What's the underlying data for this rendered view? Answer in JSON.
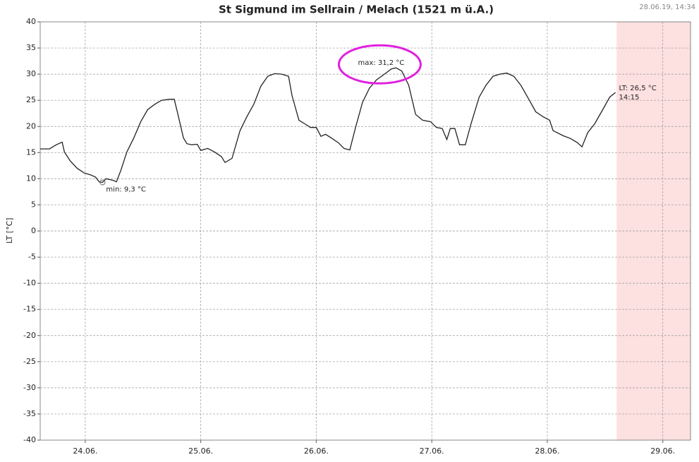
{
  "chart_data": {
    "type": "line",
    "title": "St Sigmund im Sellrain / Melach (1521 m ü.A.)",
    "timestamp": "28.06.19, 14:34",
    "y_label": "LT [°C]",
    "xlim": [
      23.61,
      29.24
    ],
    "xticks": [
      {
        "value": 24,
        "label": "24.06."
      },
      {
        "value": 25,
        "label": "25.06."
      },
      {
        "value": 26,
        "label": "26.06."
      },
      {
        "value": 27,
        "label": "27.06."
      },
      {
        "value": 28,
        "label": "28.06."
      },
      {
        "value": 29,
        "label": "29.06."
      }
    ],
    "ylim": [
      -40,
      40
    ],
    "yticks": [
      40,
      35,
      30,
      25,
      20,
      15,
      10,
      5,
      0,
      -5,
      -10,
      -15,
      -20,
      -25,
      -30,
      -35,
      -40
    ],
    "grid": true,
    "highlight_xlim": [
      28.6,
      29.24
    ],
    "highlight_color": "#fde0e0",
    "min_label": "min: 9,3 °C",
    "max_label": "max: 31,2 °C",
    "last_label": [
      "LT: 26,5 °C",
      "14:15"
    ],
    "series": [
      {
        "color": "#222222",
        "x": [
          23.61,
          23.69,
          23.75,
          23.8,
          23.82,
          23.87,
          23.93,
          23.99,
          24.05,
          24.09,
          24.12,
          24.15,
          24.18,
          24.24,
          24.27,
          24.31,
          24.36,
          24.42,
          24.48,
          24.54,
          24.6,
          24.66,
          24.73,
          24.77,
          24.8,
          24.85,
          24.88,
          24.92,
          24.97,
          25.0,
          25.06,
          25.12,
          25.18,
          25.21,
          25.27,
          25.34,
          25.4,
          25.46,
          25.52,
          25.58,
          25.64,
          25.7,
          25.76,
          25.79,
          25.85,
          25.9,
          25.95,
          26.0,
          26.04,
          26.08,
          26.13,
          26.19,
          26.24,
          26.29,
          26.34,
          26.4,
          26.46,
          26.52,
          26.59,
          26.65,
          26.69,
          26.74,
          26.8,
          26.86,
          26.92,
          26.99,
          27.04,
          27.09,
          27.13,
          27.16,
          27.2,
          27.24,
          27.29,
          27.34,
          27.41,
          27.47,
          27.53,
          27.59,
          27.65,
          27.71,
          27.77,
          27.84,
          27.9,
          27.96,
          28.02,
          28.05,
          28.14,
          28.2,
          28.26,
          28.3,
          28.35,
          28.41,
          28.48,
          28.54,
          28.59
        ],
        "values": [
          15.7,
          15.7,
          16.5,
          17.0,
          15.1,
          13.4,
          12.0,
          11.1,
          10.7,
          10.3,
          9.4,
          9.3,
          10.0,
          9.7,
          9.4,
          11.7,
          15.1,
          17.8,
          20.9,
          23.2,
          24.2,
          25.0,
          25.2,
          25.2,
          22.5,
          17.8,
          16.7,
          16.5,
          16.6,
          15.4,
          15.8,
          15.1,
          14.2,
          13.1,
          13.9,
          19.2,
          21.9,
          24.3,
          27.7,
          29.6,
          30.1,
          30.0,
          29.6,
          25.9,
          21.2,
          20.5,
          19.8,
          19.8,
          18.1,
          18.5,
          17.8,
          16.9,
          15.8,
          15.5,
          19.8,
          24.6,
          27.3,
          28.9,
          30.0,
          31.0,
          31.2,
          30.6,
          27.9,
          22.3,
          21.2,
          20.9,
          19.8,
          19.6,
          17.5,
          19.6,
          19.6,
          16.5,
          16.5,
          20.5,
          25.6,
          27.9,
          29.6,
          30.0,
          30.2,
          29.6,
          27.9,
          25.2,
          22.8,
          21.9,
          21.2,
          19.2,
          18.2,
          17.7,
          16.9,
          16.1,
          18.8,
          20.5,
          23.2,
          25.6,
          26.5
        ]
      }
    ]
  }
}
